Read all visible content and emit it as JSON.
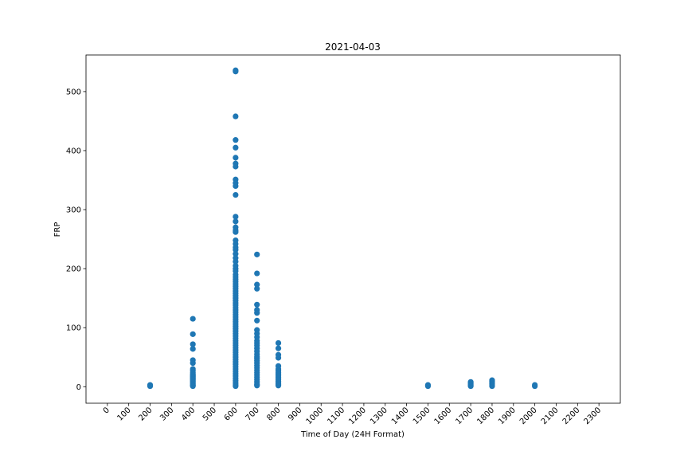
{
  "chart_data": {
    "type": "scatter",
    "title": "2021-04-03",
    "xlabel": "Time of Day (24H Format)",
    "ylabel": "FRP",
    "xlim": [
      -100,
      2400
    ],
    "ylim": [
      -28,
      562
    ],
    "x_ticks": [
      0,
      100,
      200,
      300,
      400,
      500,
      600,
      700,
      800,
      900,
      1000,
      1100,
      1200,
      1300,
      1400,
      1500,
      1600,
      1700,
      1800,
      1900,
      2000,
      2100,
      2200,
      2300
    ],
    "y_ticks": [
      0,
      100,
      200,
      300,
      400,
      500
    ],
    "marker_color": "#1f77b4",
    "grid": false,
    "legend": "none",
    "points": {
      "x200": [
        3,
        2,
        1
      ],
      "x400": [
        115,
        89,
        72,
        64,
        45,
        40,
        30,
        27,
        24,
        21,
        19,
        17,
        15,
        13,
        11,
        9,
        7,
        5,
        3,
        2,
        1
      ],
      "x600": [
        536,
        534,
        458,
        418,
        405,
        388,
        378,
        373,
        351,
        345,
        340,
        325,
        288,
        280,
        270,
        265,
        262,
        248,
        242,
        236,
        232,
        225,
        218,
        212,
        205,
        200,
        196,
        190,
        186,
        182,
        178,
        174,
        170,
        166,
        162,
        158,
        154,
        150,
        146,
        142,
        138,
        134,
        130,
        126,
        122,
        118,
        114,
        110,
        106,
        102,
        98,
        94,
        90,
        86,
        82,
        78,
        74,
        70,
        66,
        62,
        58,
        54,
        50,
        46,
        42,
        38,
        34,
        30,
        26,
        22,
        18,
        14,
        10,
        6,
        3,
        1
      ],
      "x700": [
        224,
        192,
        173,
        166,
        139,
        130,
        125,
        112,
        96,
        90,
        84,
        78,
        74,
        70,
        65,
        60,
        55,
        51,
        48,
        44,
        40,
        36,
        32,
        28,
        24,
        20,
        16,
        12,
        8,
        4,
        2
      ],
      "x800": [
        74,
        65,
        54,
        49,
        35,
        30,
        27,
        24,
        21,
        18,
        15,
        12,
        9,
        6,
        4,
        2
      ],
      "x1500": [
        3,
        2,
        1
      ],
      "x1700": [
        8,
        6,
        4,
        2,
        1
      ],
      "x1800": [
        11,
        9,
        7,
        5,
        3,
        1
      ],
      "x2000": [
        3,
        1
      ]
    }
  }
}
